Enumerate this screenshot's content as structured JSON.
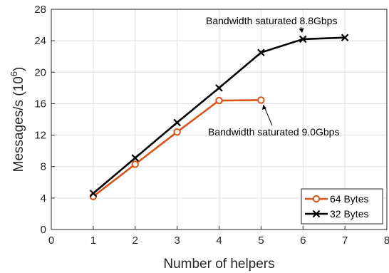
{
  "chart_data": {
    "type": "line",
    "title": "",
    "xlabel": "Number of helpers",
    "ylabel": "Messages/s (10",
    "ylabel_superscript": "6",
    "ylabel_suffix": ")",
    "xlim": [
      0,
      8
    ],
    "ylim": [
      0,
      28
    ],
    "x_ticks": [
      "0",
      "1",
      "2",
      "3",
      "4",
      "5",
      "6",
      "7",
      "8"
    ],
    "y_ticks": [
      "0",
      "4",
      "8",
      "12",
      "16",
      "20",
      "24",
      "28"
    ],
    "grid": true,
    "legend_position": "bottom-right",
    "series": [
      {
        "name": "64 Bytes",
        "color": "#d95319",
        "marker": "circle",
        "x": [
          1,
          2,
          3,
          4,
          5
        ],
        "y": [
          4.2,
          8.3,
          12.4,
          16.4,
          16.45
        ]
      },
      {
        "name": "32 Bytes",
        "color": "#000000",
        "marker": "x",
        "x": [
          1,
          2,
          3,
          4,
          5,
          6,
          7
        ],
        "y": [
          4.6,
          9.1,
          13.6,
          18.0,
          22.5,
          24.2,
          24.4
        ]
      }
    ],
    "annotations": [
      {
        "text": "Bandwidth saturated 8.8Gbps",
        "arrow_to_x": 6,
        "arrow_to_y": 24.2
      },
      {
        "text": "Bandwidth saturated 9.0Gbps",
        "arrow_to_x": 5,
        "arrow_to_y": 16.45
      }
    ]
  }
}
